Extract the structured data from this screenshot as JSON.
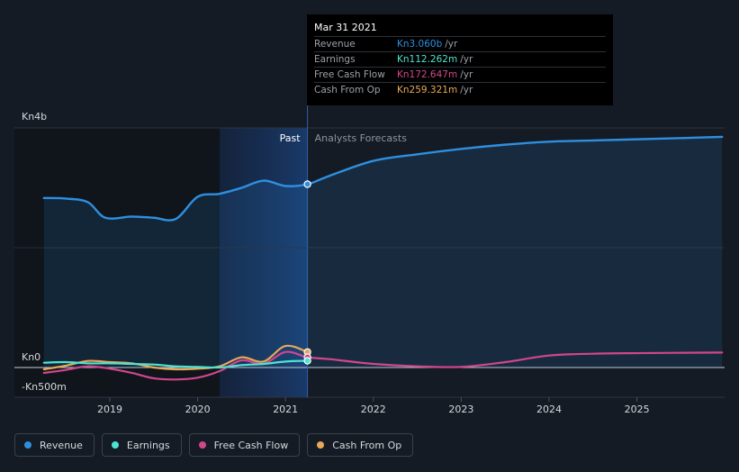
{
  "chart_data": {
    "type": "line",
    "y_ticks": [
      {
        "label": "Kn4b",
        "value": 4000
      },
      {
        "label": "Kn0",
        "value": 0
      },
      {
        "label": "-Kn500m",
        "value": -500
      }
    ],
    "x_ticks": [
      "2019",
      "2020",
      "2021",
      "2022",
      "2023",
      "2024",
      "2025"
    ],
    "ylim": [
      -500,
      4000
    ],
    "past_label": "Past",
    "forecast_label": "Analysts Forecasts",
    "past_end": 2021.25,
    "highlight_start": 2020.25,
    "series": [
      {
        "name": "Revenue",
        "color": "#2e8fe0",
        "area": true,
        "points": [
          [
            2018.25,
            2830
          ],
          [
            2018.5,
            2820
          ],
          [
            2018.75,
            2760
          ],
          [
            2018.95,
            2500
          ],
          [
            2019.25,
            2520
          ],
          [
            2019.5,
            2500
          ],
          [
            2019.75,
            2480
          ],
          [
            2020.0,
            2850
          ],
          [
            2020.25,
            2900
          ],
          [
            2020.5,
            3000
          ],
          [
            2020.75,
            3120
          ],
          [
            2021.0,
            3030
          ],
          [
            2021.25,
            3060
          ],
          [
            2021.5,
            3200
          ],
          [
            2022.0,
            3450
          ],
          [
            2022.5,
            3560
          ],
          [
            2023.0,
            3650
          ],
          [
            2023.5,
            3720
          ],
          [
            2024.0,
            3770
          ],
          [
            2024.5,
            3790
          ],
          [
            2025.0,
            3810
          ],
          [
            2025.5,
            3830
          ],
          [
            2025.97,
            3850
          ]
        ]
      },
      {
        "name": "Earnings",
        "color": "#4de3d0",
        "area": false,
        "points": [
          [
            2018.25,
            80
          ],
          [
            2018.5,
            90
          ],
          [
            2018.75,
            70
          ],
          [
            2019.0,
            70
          ],
          [
            2019.25,
            60
          ],
          [
            2019.5,
            50
          ],
          [
            2019.75,
            20
          ],
          [
            2020.0,
            10
          ],
          [
            2020.25,
            0
          ],
          [
            2020.5,
            40
          ],
          [
            2020.75,
            60
          ],
          [
            2021.0,
            100
          ],
          [
            2021.25,
            112
          ]
        ]
      },
      {
        "name": "Free Cash Flow",
        "color": "#d2468c",
        "area": false,
        "points": [
          [
            2018.25,
            -90
          ],
          [
            2018.5,
            -40
          ],
          [
            2018.75,
            20
          ],
          [
            2019.0,
            -20
          ],
          [
            2019.25,
            -90
          ],
          [
            2019.5,
            -180
          ],
          [
            2019.75,
            -200
          ],
          [
            2020.0,
            -170
          ],
          [
            2020.25,
            -60
          ],
          [
            2020.5,
            120
          ],
          [
            2020.75,
            60
          ],
          [
            2021.0,
            260
          ],
          [
            2021.25,
            172
          ],
          [
            2021.5,
            140
          ],
          [
            2022.0,
            60
          ],
          [
            2022.5,
            20
          ],
          [
            2023.0,
            10
          ],
          [
            2023.5,
            90
          ],
          [
            2024.0,
            200
          ],
          [
            2024.5,
            230
          ],
          [
            2025.0,
            240
          ],
          [
            2025.97,
            250
          ]
        ]
      },
      {
        "name": "Cash From Op",
        "color": "#e8a85a",
        "area": false,
        "points": [
          [
            2018.25,
            -30
          ],
          [
            2018.5,
            30
          ],
          [
            2018.75,
            110
          ],
          [
            2019.0,
            90
          ],
          [
            2019.25,
            70
          ],
          [
            2019.5,
            0
          ],
          [
            2019.75,
            -30
          ],
          [
            2020.0,
            -20
          ],
          [
            2020.25,
            20
          ],
          [
            2020.5,
            170
          ],
          [
            2020.75,
            100
          ],
          [
            2021.0,
            360
          ],
          [
            2021.25,
            259
          ]
        ]
      }
    ]
  },
  "tooltip": {
    "date": "Mar 31 2021",
    "rows": [
      {
        "label": "Revenue",
        "value": "Kn3.060b",
        "unit": "/yr",
        "color": "#2e8fe0"
      },
      {
        "label": "Earnings",
        "value": "Kn112.262m",
        "unit": "/yr",
        "color": "#4de3d0"
      },
      {
        "label": "Free Cash Flow",
        "value": "Kn172.647m",
        "unit": "/yr",
        "color": "#d2468c"
      },
      {
        "label": "Cash From Op",
        "value": "Kn259.321m",
        "unit": "/yr",
        "color": "#e8a85a"
      }
    ]
  },
  "legend": [
    {
      "label": "Revenue",
      "color": "#2e8fe0"
    },
    {
      "label": "Earnings",
      "color": "#4de3d0"
    },
    {
      "label": "Free Cash Flow",
      "color": "#d2468c"
    },
    {
      "label": "Cash From Op",
      "color": "#e8a85a"
    }
  ]
}
